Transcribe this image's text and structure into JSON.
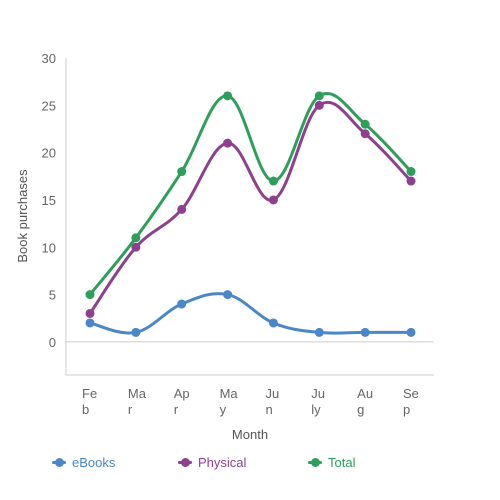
{
  "chart_data": {
    "type": "line",
    "xlabel": "Month",
    "ylabel": "Book purchases",
    "categories": [
      "Feb",
      "Mar",
      "Apr",
      "May",
      "Jun",
      "July",
      "Aug",
      "Sep"
    ],
    "ylim": [
      -3.5,
      30
    ],
    "yticks": [
      0,
      5,
      10,
      15,
      20,
      25,
      30
    ],
    "grid": false,
    "legend_position": "bottom",
    "series": [
      {
        "name": "eBooks",
        "color": "#4a86c8",
        "values": [
          2,
          1,
          4,
          5,
          2,
          1,
          1,
          1
        ]
      },
      {
        "name": "Physical",
        "color": "#8e3f8e",
        "values": [
          3,
          10,
          14,
          21,
          15,
          25,
          22,
          17
        ]
      },
      {
        "name": "Total",
        "color": "#2e9e5b",
        "values": [
          5,
          11,
          18,
          26,
          17,
          26,
          23,
          18
        ]
      }
    ]
  }
}
